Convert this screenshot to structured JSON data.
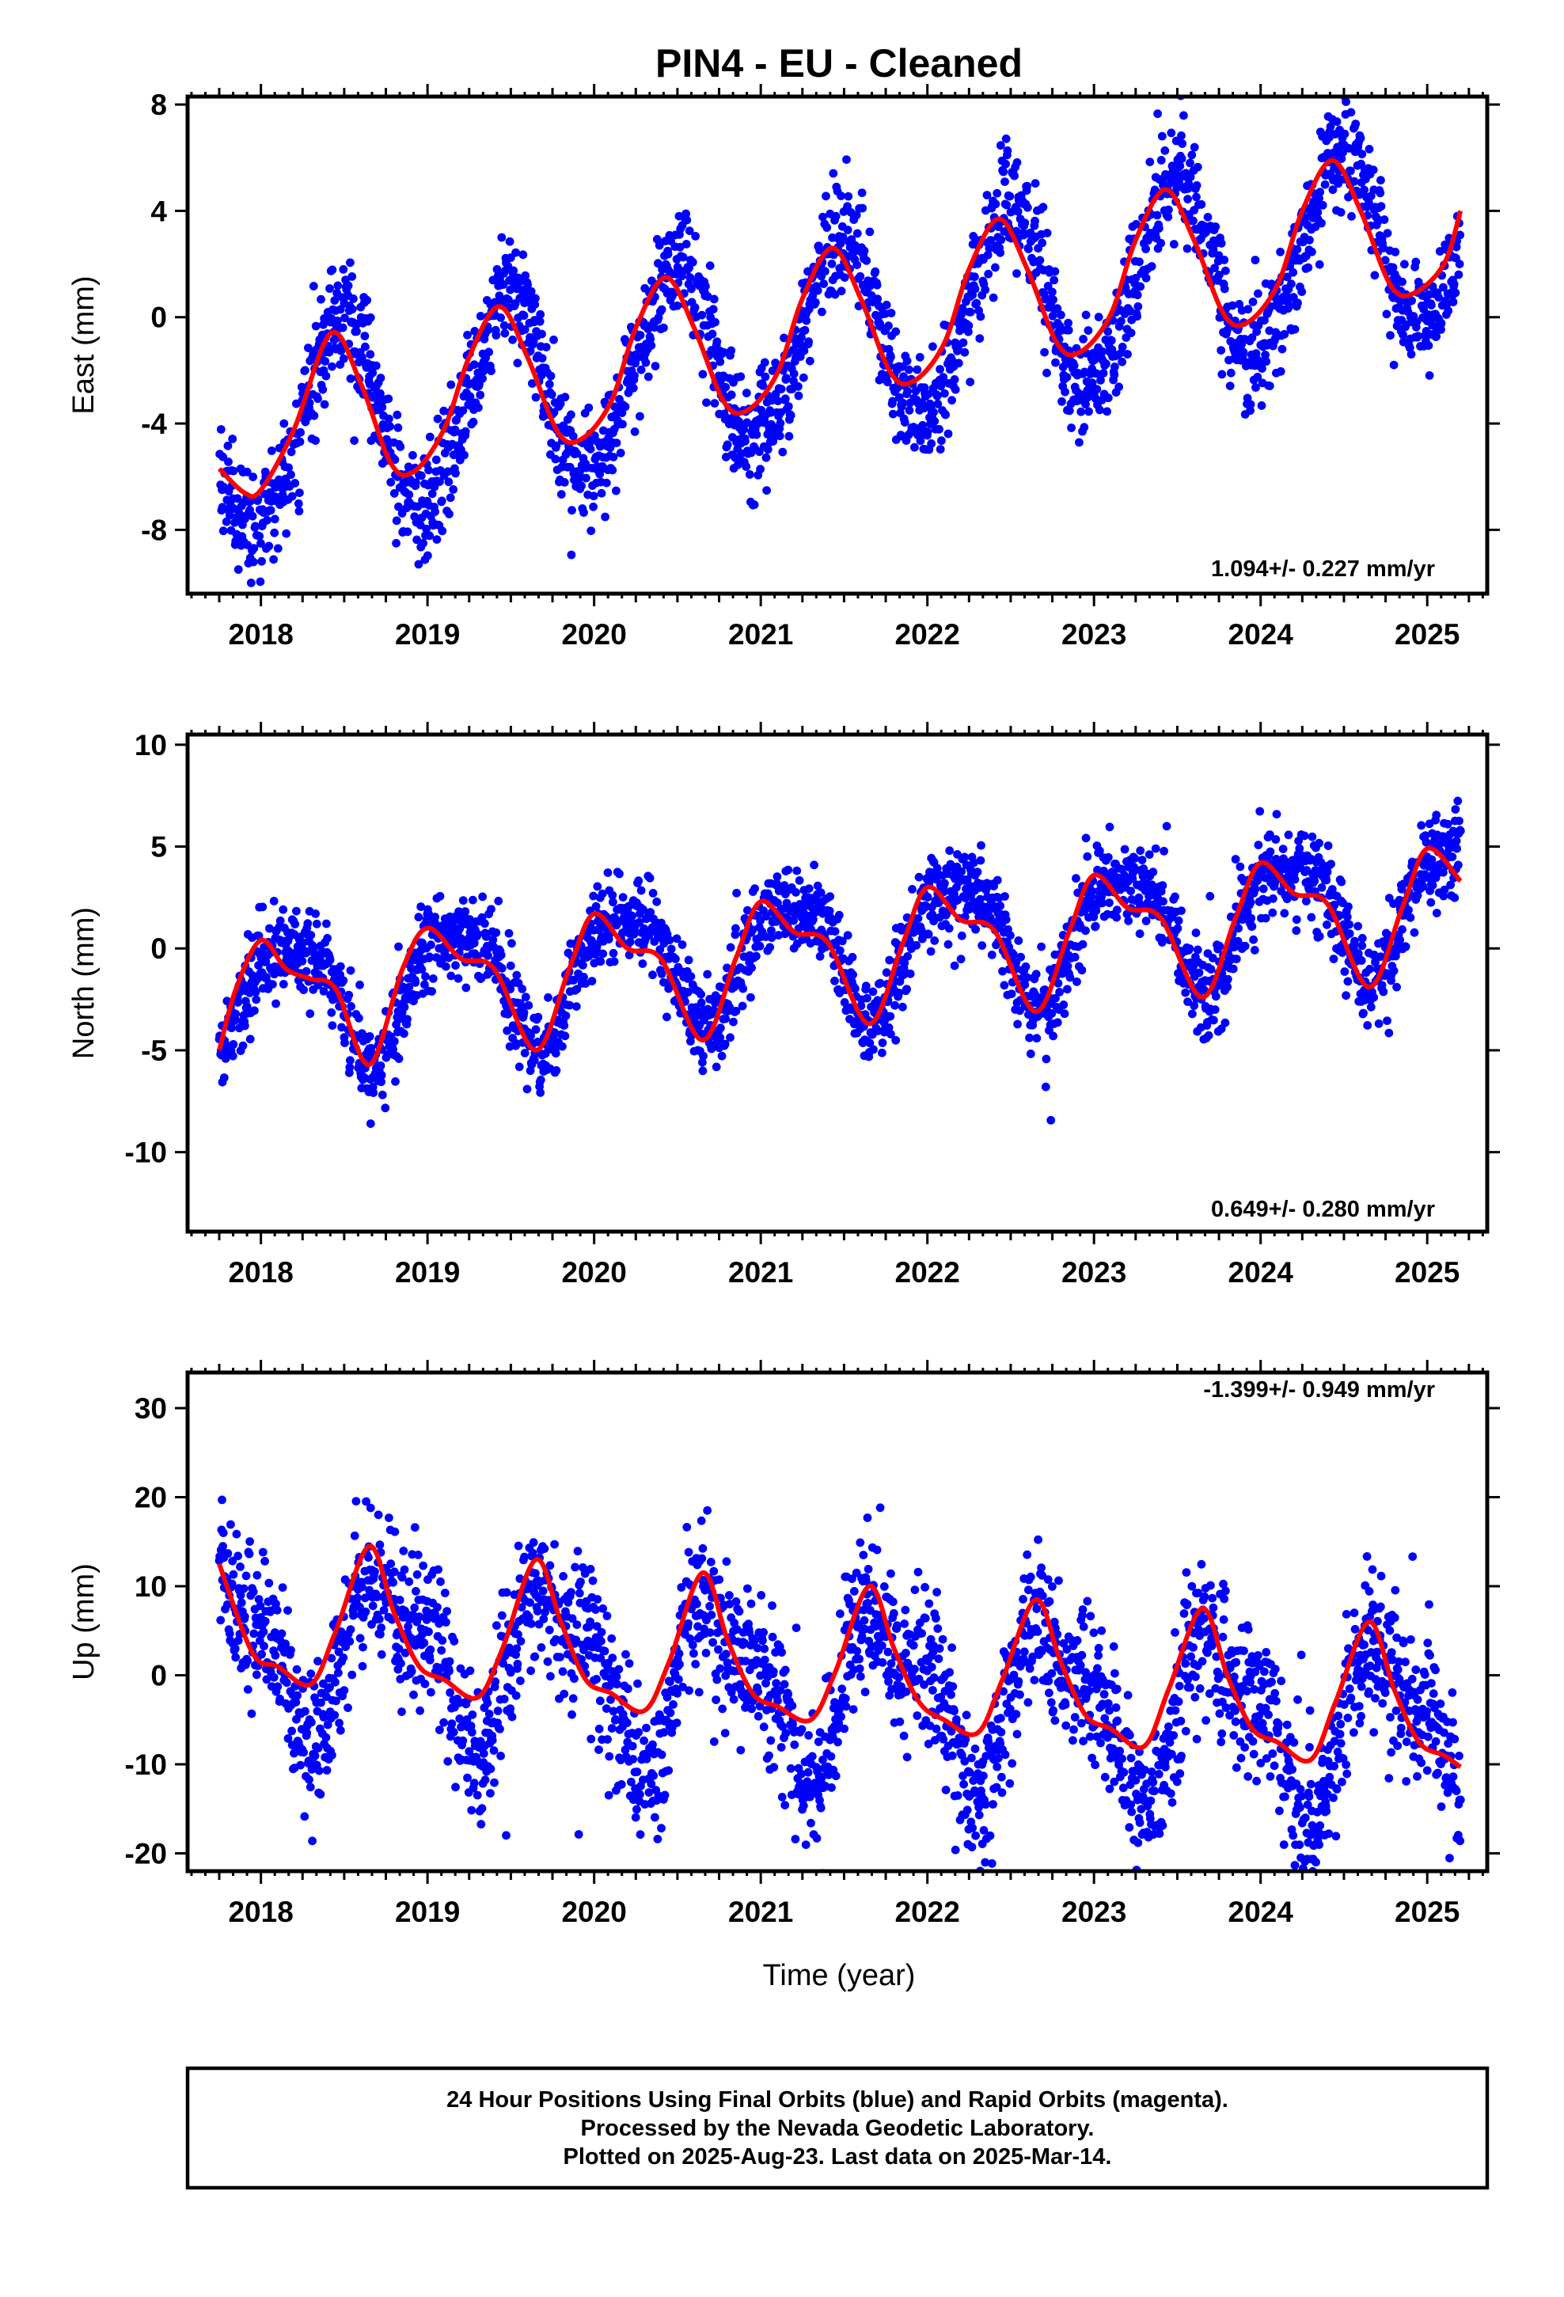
{
  "title": "PIN4  - EU - Cleaned",
  "xlabel": "Time (year)",
  "footer_lines": [
    "24 Hour Positions Using Final Orbits (blue) and Rapid Orbits (magenta).",
    "Processed by the Nevada Geodetic Laboratory.",
    "Plotted on 2025-Aug-23. Last data on 2025-Mar-14."
  ],
  "chart_data": [
    {
      "type": "scatter",
      "ylabel": "East (mm)",
      "rate_label": "1.094+/- 0.227 mm/yr",
      "xlim": [
        2017.56,
        2025.36
      ],
      "ylim": [
        -10.4,
        8.3
      ],
      "x_ticks": [
        2018,
        2019,
        2020,
        2021,
        2022,
        2023,
        2024,
        2025
      ],
      "y_ticks": [
        8,
        4,
        0,
        -4,
        -8
      ],
      "colors": {
        "points": "#0000ff",
        "fit": "#ff0000"
      },
      "model": {
        "t0": 2017.75,
        "tend": 2025.2,
        "offset": -4.75,
        "trend": 1.094,
        "a1": -3.6,
        "b1": 0.5,
        "a2": 0.3,
        "b2": 0.2,
        "noise": 1.05
      },
      "fit_x": [
        2017.75,
        2017.9,
        2018.0,
        2018.2,
        2018.42,
        2018.6,
        2018.78,
        2018.92,
        2019.1,
        2019.25,
        2019.43,
        2019.6,
        2019.78,
        2019.92,
        2020.1,
        2020.25,
        2020.43,
        2020.6,
        2020.78,
        2020.92,
        2021.1,
        2021.25,
        2021.43,
        2021.6,
        2021.78,
        2021.92,
        2022.1,
        2022.25,
        2022.43,
        2022.6,
        2022.78,
        2022.92,
        2023.1,
        2023.25,
        2023.43,
        2023.6,
        2023.78,
        2023.92,
        2024.1,
        2024.25,
        2024.43,
        2024.6,
        2024.78,
        2024.92,
        2025.1,
        2025.2
      ],
      "fit_y": [
        -5.7,
        -6.6,
        -6.5,
        -4.2,
        -0.6,
        -2.5,
        -5.5,
        -5.8,
        -4.2,
        -1.5,
        0.4,
        -1.5,
        -4.3,
        -4.6,
        -3.2,
        -0.4,
        1.5,
        -0.4,
        -3.2,
        -3.5,
        -2.1,
        0.7,
        2.6,
        0.7,
        -2.1,
        -2.4,
        -1.0,
        1.8,
        3.7,
        1.8,
        -1.0,
        -1.3,
        0.1,
        2.9,
        4.8,
        2.9,
        0.1,
        -0.2,
        1.2,
        4.0,
        5.9,
        4.0,
        1.2,
        0.9,
        2.0,
        4.0
      ]
    },
    {
      "type": "scatter",
      "ylabel": "North (mm)",
      "rate_label": "0.649+/- 0.280 mm/yr",
      "xlim": [
        2017.56,
        2025.36
      ],
      "ylim": [
        -13.9,
        10.5
      ],
      "x_ticks": [
        2018,
        2019,
        2020,
        2021,
        2022,
        2023,
        2024,
        2025
      ],
      "y_ticks": [
        10,
        5,
        0,
        -5,
        -10
      ],
      "colors": {
        "points": "#0000ff",
        "fit": "#ff0000"
      },
      "model": {
        "t0": 2017.75,
        "tend": 2025.2,
        "offset": -2.5,
        "trend": 0.649,
        "a1": 1.4,
        "b1": 2.6,
        "a2": 0.4,
        "b2": -0.6,
        "noise": 1.05
      },
      "fit_x": [
        2017.75,
        2017.85,
        2018.0,
        2018.15,
        2018.3,
        2018.45,
        2018.65,
        2018.85,
        2019.0,
        2019.2,
        2019.4,
        2019.65,
        2019.85,
        2020.0,
        2020.2,
        2020.4,
        2020.65,
        2020.85,
        2021.0,
        2021.2,
        2021.4,
        2021.65,
        2021.85,
        2022.0,
        2022.2,
        2022.4,
        2022.65,
        2022.85,
        2023.0,
        2023.2,
        2023.4,
        2023.65,
        2023.85,
        2024.0,
        2024.2,
        2024.4,
        2024.65,
        2024.85,
        2025.0,
        2025.2
      ],
      "fit_y": [
        -5.0,
        -2.0,
        0.4,
        -1.0,
        -1.5,
        -2.0,
        -5.7,
        -1.0,
        1.0,
        -0.5,
        -1.0,
        -5.0,
        -1.0,
        1.7,
        0.0,
        -0.5,
        -4.5,
        -0.5,
        2.3,
        0.8,
        0.3,
        -3.7,
        0.2,
        3.0,
        1.4,
        0.9,
        -3.1,
        0.8,
        3.6,
        2.0,
        1.5,
        -2.4,
        1.5,
        4.2,
        2.7,
        2.2,
        -1.9,
        2.0,
        4.9,
        3.3
      ]
    },
    {
      "type": "scatter",
      "ylabel": "Up (mm)",
      "rate_label": "-1.399+/- 0.949 mm/yr",
      "xlim": [
        2017.56,
        2025.36
      ],
      "ylim": [
        -22.0,
        34.0
      ],
      "x_ticks": [
        2018,
        2019,
        2020,
        2021,
        2022,
        2023,
        2024,
        2025
      ],
      "y_ticks": [
        30,
        20,
        10,
        0,
        -10,
        -20
      ],
      "colors": {
        "points": "#0000ff",
        "fit": "#ff0000"
      },
      "model": {
        "t0": 2017.75,
        "tend": 2025.2,
        "offset": 4.0,
        "trend": -1.399,
        "a1": 0.5,
        "b1": -8.5,
        "a2": 2.0,
        "b2": 3.0,
        "noise": 4.2
      },
      "fit_x": [
        2017.75,
        2017.95,
        2018.1,
        2018.3,
        2018.45,
        2018.65,
        2018.8,
        2018.95,
        2019.1,
        2019.3,
        2019.45,
        2019.65,
        2019.8,
        2019.95,
        2020.1,
        2020.3,
        2020.45,
        2020.65,
        2020.8,
        2020.95,
        2021.1,
        2021.3,
        2021.45,
        2021.65,
        2021.8,
        2021.95,
        2022.1,
        2022.3,
        2022.45,
        2022.65,
        2022.8,
        2022.95,
        2023.1,
        2023.3,
        2023.45,
        2023.65,
        2023.8,
        2023.95,
        2024.1,
        2024.3,
        2024.45,
        2024.65,
        2024.8,
        2024.95,
        2025.1,
        2025.2
      ],
      "fit_y": [
        12.5,
        2.5,
        1.0,
        -1.0,
        5.0,
        14.5,
        7.0,
        1.0,
        -0.5,
        -2.5,
        3.0,
        13.0,
        6.0,
        -0.5,
        -2.0,
        -4.0,
        1.5,
        11.5,
        4.0,
        -2.0,
        -3.5,
        -5.0,
        0.5,
        10.0,
        3.0,
        -3.0,
        -5.0,
        -6.5,
        -0.5,
        8.5,
        1.5,
        -4.5,
        -6.0,
        -8.0,
        -1.5,
        7.5,
        0.0,
        -6.0,
        -7.5,
        -9.5,
        -3.0,
        6.0,
        -1.5,
        -7.5,
        -9.0,
        -10.3
      ]
    }
  ]
}
